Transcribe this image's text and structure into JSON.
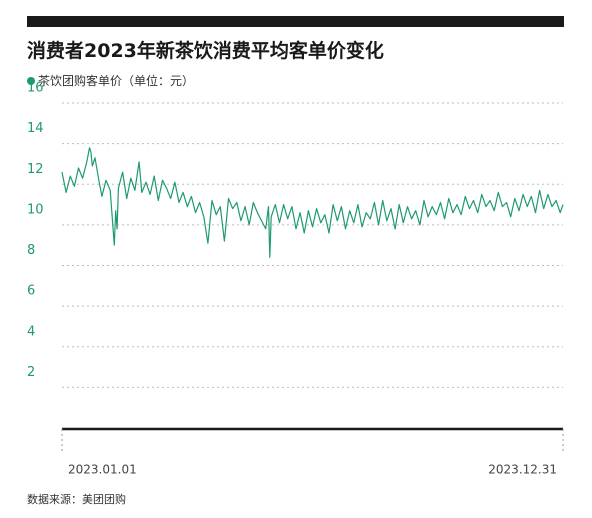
{
  "title": "消费者2023年新茶饮消费平均客单价变化",
  "legend": {
    "label": "茶饮团购客单价（单位：元）"
  },
  "source": "数据来源：美团团购",
  "colors": {
    "line": "#1f9a6e",
    "tick_label": "#1f9a6e",
    "grid": "#bdbdbd",
    "axis": "#1a1a1a",
    "topbar": "#1a1a1a"
  },
  "chart_data": {
    "type": "line",
    "title": "消费者2023年新茶饮消费平均客单价变化",
    "xlabel": "",
    "ylabel": "",
    "ylim": [
      0,
      16
    ],
    "yticks": [
      2,
      4,
      6,
      8,
      10,
      12,
      14,
      16
    ],
    "grid": true,
    "legend_position": "top-left",
    "x_tick_labels": [
      "2023.01.01",
      "2023.12.31"
    ],
    "series": [
      {
        "name": "茶饮团购客单价（单位：元）",
        "x": [
          "2023-01-01",
          "2023-01-04",
          "2023-01-07",
          "2023-01-10",
          "2023-01-13",
          "2023-01-16",
          "2023-01-19",
          "2023-01-21",
          "2023-01-22",
          "2023-01-23",
          "2023-01-25",
          "2023-01-28",
          "2023-01-30",
          "2023-02-02",
          "2023-02-05",
          "2023-02-08",
          "2023-02-09",
          "2023-02-10",
          "2023-02-11",
          "2023-02-14",
          "2023-02-17",
          "2023-02-20",
          "2023-02-23",
          "2023-02-26",
          "2023-02-28",
          "2023-03-03",
          "2023-03-06",
          "2023-03-09",
          "2023-03-12",
          "2023-03-15",
          "2023-03-18",
          "2023-03-21",
          "2023-03-24",
          "2023-03-27",
          "2023-03-30",
          "2023-04-02",
          "2023-04-05",
          "2023-04-08",
          "2023-04-11",
          "2023-04-14",
          "2023-04-17",
          "2023-04-20",
          "2023-04-23",
          "2023-04-26",
          "2023-04-29",
          "2023-05-02",
          "2023-05-05",
          "2023-05-08",
          "2023-05-11",
          "2023-05-14",
          "2023-05-17",
          "2023-05-20",
          "2023-05-23",
          "2023-05-26",
          "2023-05-29",
          "2023-05-31",
          "2023-06-01",
          "2023-06-02",
          "2023-06-05",
          "2023-06-08",
          "2023-06-11",
          "2023-06-14",
          "2023-06-17",
          "2023-06-20",
          "2023-06-23",
          "2023-06-26",
          "2023-06-29",
          "2023-07-02",
          "2023-07-05",
          "2023-07-08",
          "2023-07-11",
          "2023-07-14",
          "2023-07-17",
          "2023-07-20",
          "2023-07-23",
          "2023-07-26",
          "2023-07-29",
          "2023-08-01",
          "2023-08-04",
          "2023-08-07",
          "2023-08-10",
          "2023-08-13",
          "2023-08-16",
          "2023-08-19",
          "2023-08-22",
          "2023-08-25",
          "2023-08-28",
          "2023-08-31",
          "2023-09-03",
          "2023-09-06",
          "2023-09-09",
          "2023-09-12",
          "2023-09-15",
          "2023-09-18",
          "2023-09-21",
          "2023-09-24",
          "2023-09-27",
          "2023-09-30",
          "2023-10-03",
          "2023-10-06",
          "2023-10-09",
          "2023-10-12",
          "2023-10-15",
          "2023-10-18",
          "2023-10-21",
          "2023-10-24",
          "2023-10-27",
          "2023-10-30",
          "2023-11-02",
          "2023-11-05",
          "2023-11-08",
          "2023-11-11",
          "2023-11-14",
          "2023-11-17",
          "2023-11-20",
          "2023-11-23",
          "2023-11-26",
          "2023-11-29",
          "2023-12-02",
          "2023-12-05",
          "2023-12-08",
          "2023-12-11",
          "2023-12-14",
          "2023-12-17",
          "2023-12-20",
          "2023-12-23",
          "2023-12-26",
          "2023-12-29",
          "2023-12-31"
        ],
        "values": [
          12.6,
          11.6,
          12.4,
          11.9,
          12.8,
          12.3,
          13.1,
          13.8,
          13.6,
          12.9,
          13.3,
          12.1,
          11.4,
          12.2,
          11.7,
          9.0,
          10.7,
          9.8,
          11.8,
          12.6,
          11.3,
          12.3,
          11.7,
          13.1,
          11.6,
          12.1,
          11.5,
          12.4,
          11.2,
          12.2,
          11.8,
          11.3,
          12.1,
          11.1,
          11.6,
          10.9,
          11.4,
          10.6,
          11.1,
          10.4,
          9.1,
          11.2,
          10.5,
          10.9,
          9.2,
          11.3,
          10.8,
          11.1,
          10.2,
          10.9,
          10.0,
          11.1,
          10.6,
          10.2,
          9.8,
          10.9,
          8.4,
          10.4,
          11.0,
          10.1,
          11.0,
          10.3,
          10.9,
          9.8,
          10.6,
          9.6,
          10.7,
          9.9,
          10.8,
          10.1,
          10.5,
          9.6,
          11.0,
          10.2,
          10.9,
          9.8,
          10.7,
          10.1,
          11.0,
          9.9,
          10.6,
          10.3,
          11.1,
          10.0,
          11.2,
          10.2,
          10.8,
          9.8,
          11.0,
          10.1,
          10.9,
          10.3,
          10.7,
          10.0,
          11.2,
          10.4,
          10.9,
          10.5,
          11.1,
          10.3,
          11.3,
          10.6,
          11.0,
          10.5,
          11.4,
          10.8,
          11.2,
          10.6,
          11.5,
          10.9,
          11.2,
          10.7,
          11.6,
          10.9,
          11.1,
          10.4,
          11.3,
          10.7,
          11.5,
          10.9,
          11.4,
          10.6,
          11.7,
          10.8,
          11.5,
          10.9,
          11.2,
          10.6,
          11.0
        ]
      }
    ]
  }
}
